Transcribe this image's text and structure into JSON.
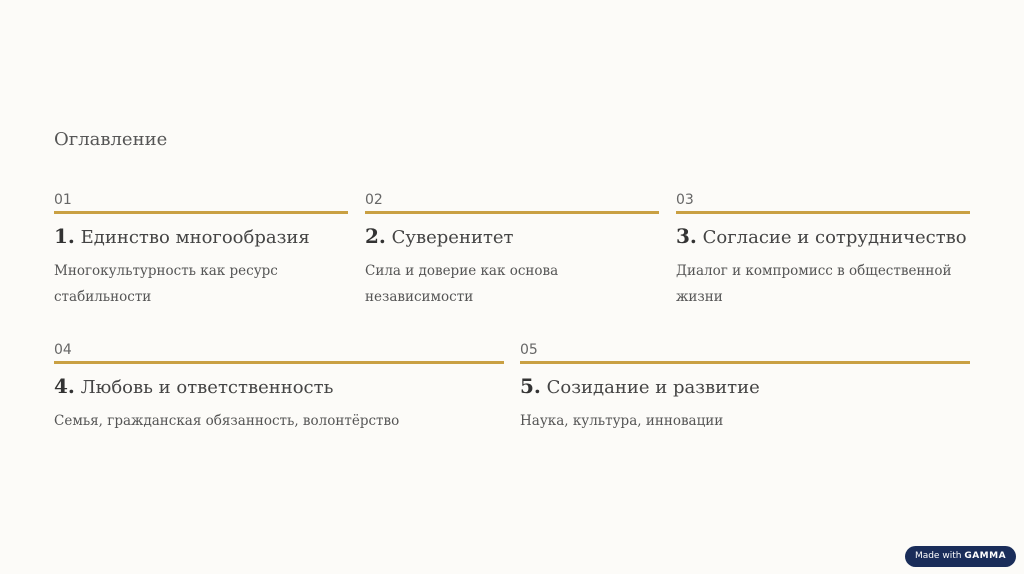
{
  "title": "Оглавление",
  "items": [
    {
      "num": "01",
      "index": "1.",
      "heading": "Единство многообразия",
      "desc": "Многокультурность как ресурс стабильности"
    },
    {
      "num": "02",
      "index": "2.",
      "heading": "Суверенитет",
      "desc": "Сила и доверие как основа независимости"
    },
    {
      "num": "03",
      "index": "3.",
      "heading": "Согласие и сотрудничество",
      "desc": "Диалог и компромисс в общественной жизни"
    },
    {
      "num": "04",
      "index": "4.",
      "heading": "Любовь и ответственность",
      "desc": "Семья, гражданская обязанность, волонтёрство"
    },
    {
      "num": "05",
      "index": "5.",
      "heading": "Созидание и развитие",
      "desc": "Наука, культура, инновации"
    }
  ],
  "badge": {
    "prefix": "Made with",
    "brand": "GAMMA"
  },
  "colors": {
    "accent": "#c9a043",
    "background": "#fcfbf8",
    "badge": "#1a2d5a"
  }
}
